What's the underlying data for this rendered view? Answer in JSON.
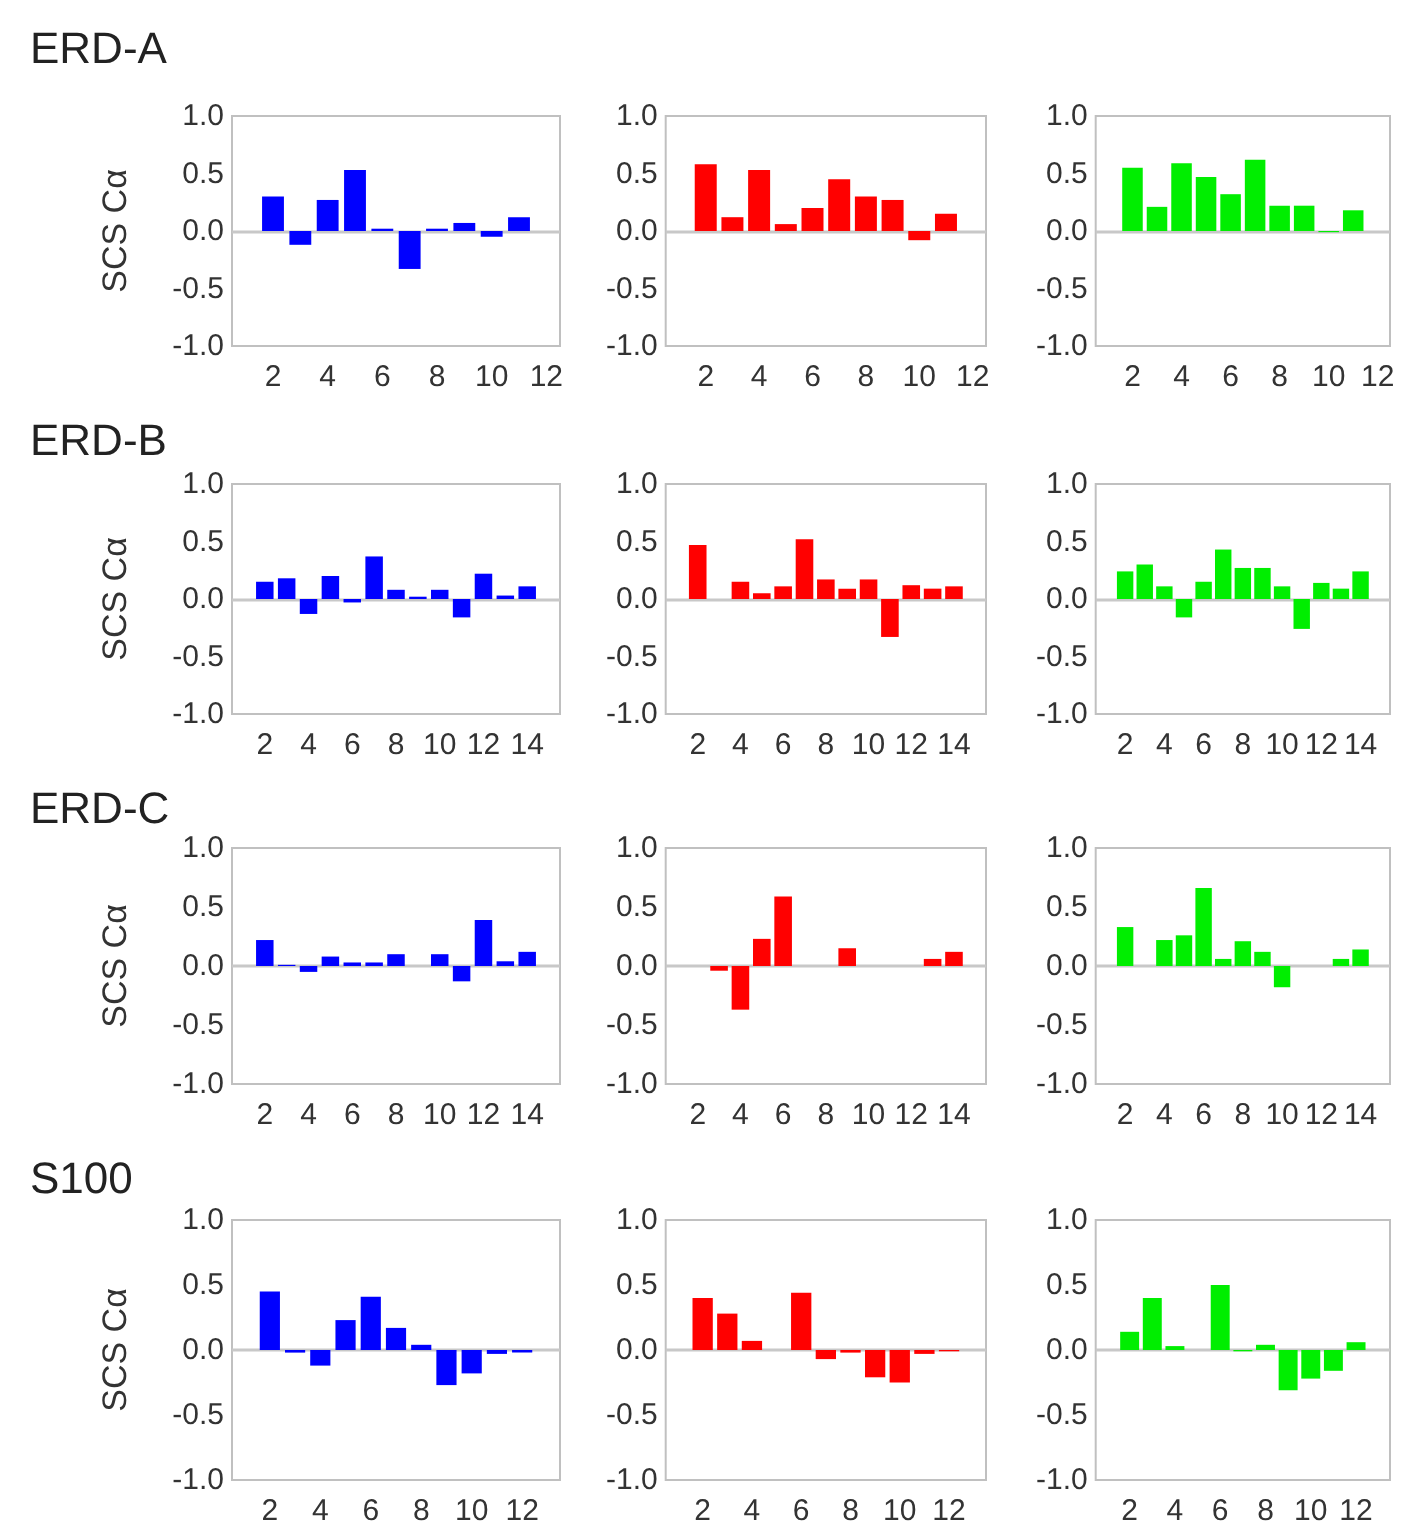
{
  "chart_data": [
    {
      "type": "bar",
      "title": "ERD-A",
      "ylabel": "SCS Cα",
      "x": [
        2,
        3,
        4,
        5,
        6,
        7,
        8,
        9,
        10,
        11
      ],
      "values": [
        0.3,
        -0.12,
        0.27,
        0.53,
        0.02,
        -0.33,
        0.02,
        0.07,
        -0.05,
        0.12
      ],
      "color": "#0000ff",
      "xlim": [
        0.5,
        12.5
      ],
      "xticks": [
        2,
        4,
        6,
        8,
        10,
        12
      ],
      "ylim": [
        -1,
        1
      ],
      "yticks": [
        {
          "value": -1,
          "label": "-1.0"
        },
        {
          "value": -0.5,
          "label": "-0.5"
        },
        {
          "value": 0,
          "label": "0.0"
        },
        {
          "value": 0.5,
          "label": "0.5"
        },
        {
          "value": 1,
          "label": "1.0"
        }
      ],
      "ref_lines": [
        {
          "axis": "y",
          "value": 0,
          "color": "#c8c8c8"
        }
      ]
    },
    {
      "type": "bar",
      "x": [
        2,
        3,
        4,
        5,
        6,
        7,
        8,
        9,
        10,
        11
      ],
      "values": [
        0.58,
        0.12,
        0.53,
        0.06,
        0.2,
        0.45,
        0.3,
        0.27,
        -0.08,
        0.15
      ],
      "color": "#ff0000",
      "xlim": [
        0.5,
        12.5
      ],
      "xticks": [
        2,
        4,
        6,
        8,
        10,
        12
      ],
      "ylim": [
        -1,
        1
      ],
      "yticks": [
        {
          "value": -1,
          "label": "-1.0"
        },
        {
          "value": -0.5,
          "label": "-0.5"
        },
        {
          "value": 0,
          "label": "0.0"
        },
        {
          "value": 0.5,
          "label": "0.5"
        },
        {
          "value": 1,
          "label": "1.0"
        }
      ],
      "ref_lines": [
        {
          "axis": "y",
          "value": 0,
          "color": "#c8c8c8"
        }
      ]
    },
    {
      "type": "bar",
      "x": [
        2,
        3,
        4,
        5,
        6,
        7,
        8,
        9,
        10,
        11
      ],
      "values": [
        0.55,
        0.21,
        0.59,
        0.47,
        0.32,
        0.62,
        0.22,
        0.22,
        -0.01,
        0.18
      ],
      "color": "#00ee00",
      "xlim": [
        0.5,
        12.5
      ],
      "xticks": [
        2,
        4,
        6,
        8,
        10,
        12
      ],
      "ylim": [
        -1,
        1
      ],
      "yticks": [
        {
          "value": -1,
          "label": "-1.0"
        },
        {
          "value": -0.5,
          "label": "-0.5"
        },
        {
          "value": 0,
          "label": "0.0"
        },
        {
          "value": 0.5,
          "label": "0.5"
        },
        {
          "value": 1,
          "label": "1.0"
        }
      ],
      "ref_lines": [
        {
          "axis": "y",
          "value": 0,
          "color": "#c8c8c8"
        }
      ]
    },
    {
      "type": "bar",
      "title": "ERD-B",
      "ylabel": "SCS Cα",
      "x": [
        2,
        3,
        4,
        5,
        6,
        7,
        8,
        9,
        10,
        11,
        12,
        13,
        14
      ],
      "values": [
        0.15,
        0.18,
        -0.13,
        0.2,
        -0.03,
        0.37,
        0.08,
        0.02,
        0.08,
        -0.16,
        0.22,
        0.03,
        0.11
      ],
      "color": "#0000ff",
      "xlim": [
        0.5,
        15.5
      ],
      "xticks": [
        2,
        4,
        6,
        8,
        10,
        12,
        14
      ],
      "ylim": [
        -1,
        1
      ],
      "yticks": [
        {
          "value": -1,
          "label": "-1.0"
        },
        {
          "value": -0.5,
          "label": "-0.5"
        },
        {
          "value": 0,
          "label": "0.0"
        },
        {
          "value": 0.5,
          "label": "0.5"
        },
        {
          "value": 1,
          "label": "1.0"
        }
      ],
      "ref_lines": [
        {
          "axis": "y",
          "value": 0,
          "color": "#c8c8c8"
        }
      ]
    },
    {
      "type": "bar",
      "x": [
        2,
        3,
        4,
        5,
        6,
        7,
        8,
        9,
        10,
        11,
        12,
        13,
        14
      ],
      "values": [
        0.47,
        null,
        0.15,
        0.05,
        0.11,
        0.52,
        0.17,
        0.09,
        0.17,
        -0.33,
        0.12,
        0.09,
        0.11
      ],
      "color": "#ff0000",
      "xlim": [
        0.5,
        15.5
      ],
      "xticks": [
        2,
        4,
        6,
        8,
        10,
        12,
        14
      ],
      "ylim": [
        -1,
        1
      ],
      "yticks": [
        {
          "value": -1,
          "label": "-1.0"
        },
        {
          "value": -0.5,
          "label": "-0.5"
        },
        {
          "value": 0,
          "label": "0.0"
        },
        {
          "value": 0.5,
          "label": "0.5"
        },
        {
          "value": 1,
          "label": "1.0"
        }
      ],
      "ref_lines": [
        {
          "axis": "y",
          "value": 0,
          "color": "#c8c8c8"
        }
      ]
    },
    {
      "type": "bar",
      "x": [
        2,
        3,
        4,
        5,
        6,
        7,
        8,
        9,
        10,
        11,
        12,
        13,
        14
      ],
      "values": [
        0.24,
        0.3,
        0.11,
        -0.16,
        0.15,
        0.43,
        0.27,
        0.27,
        0.11,
        -0.26,
        0.14,
        0.09,
        0.24
      ],
      "color": "#00ee00",
      "xlim": [
        0.5,
        15.5
      ],
      "xticks": [
        2,
        4,
        6,
        8,
        10,
        12,
        14
      ],
      "ylim": [
        -1,
        1
      ],
      "yticks": [
        {
          "value": -1,
          "label": "-1.0"
        },
        {
          "value": -0.5,
          "label": "-0.5"
        },
        {
          "value": 0,
          "label": "0.0"
        },
        {
          "value": 0.5,
          "label": "0.5"
        },
        {
          "value": 1,
          "label": "1.0"
        }
      ],
      "ref_lines": [
        {
          "axis": "y",
          "value": 0,
          "color": "#c8c8c8"
        }
      ]
    },
    {
      "type": "bar",
      "title": "ERD-C",
      "ylabel": "SCS Cα",
      "x": [
        2,
        3,
        4,
        5,
        6,
        7,
        8,
        9,
        10,
        11,
        12,
        13,
        14
      ],
      "values": [
        0.22,
        0.01,
        -0.05,
        0.08,
        0.03,
        0.03,
        0.1,
        null,
        0.1,
        -0.13,
        0.39,
        0.04,
        0.12
      ],
      "color": "#0000ff",
      "xlim": [
        0.5,
        15.5
      ],
      "xticks": [
        2,
        4,
        6,
        8,
        10,
        12,
        14
      ],
      "ylim": [
        -1,
        1
      ],
      "yticks": [
        {
          "value": -1,
          "label": "-1.0"
        },
        {
          "value": -0.5,
          "label": "-0.5"
        },
        {
          "value": 0,
          "label": "0.0"
        },
        {
          "value": 0.5,
          "label": "0.5"
        },
        {
          "value": 1,
          "label": "1.0"
        }
      ],
      "ref_lines": [
        {
          "axis": "y",
          "value": 0,
          "color": "#c8c8c8"
        }
      ]
    },
    {
      "type": "bar",
      "x": [
        3,
        4,
        5,
        6,
        7,
        8,
        9,
        10,
        11,
        12,
        13,
        14
      ],
      "values": [
        -0.04,
        -0.37,
        0.23,
        0.59,
        null,
        null,
        0.15,
        null,
        null,
        null,
        0.06,
        0.12
      ],
      "color": "#ff0000",
      "xlim": [
        0.5,
        15.5
      ],
      "xticks": [
        2,
        4,
        6,
        8,
        10,
        12,
        14
      ],
      "ylim": [
        -1,
        1
      ],
      "yticks": [
        {
          "value": -1,
          "label": "-1.0"
        },
        {
          "value": -0.5,
          "label": "-0.5"
        },
        {
          "value": 0,
          "label": "0.0"
        },
        {
          "value": 0.5,
          "label": "0.5"
        },
        {
          "value": 1,
          "label": "1.0"
        }
      ],
      "ref_lines": [
        {
          "axis": "y",
          "value": 0,
          "color": "#c8c8c8"
        }
      ]
    },
    {
      "type": "bar",
      "x": [
        2,
        3,
        4,
        5,
        6,
        7,
        8,
        9,
        10,
        11,
        12,
        13,
        14
      ],
      "values": [
        0.33,
        null,
        0.22,
        0.26,
        0.66,
        0.06,
        0.21,
        0.12,
        -0.18,
        null,
        null,
        0.06,
        0.14
      ],
      "color": "#00ee00",
      "xlim": [
        0.5,
        15.5
      ],
      "xticks": [
        2,
        4,
        6,
        8,
        10,
        12,
        14
      ],
      "ylim": [
        -1,
        1
      ],
      "yticks": [
        {
          "value": -1,
          "label": "-1.0"
        },
        {
          "value": -0.5,
          "label": "-0.5"
        },
        {
          "value": 0,
          "label": "0.0"
        },
        {
          "value": 0.5,
          "label": "0.5"
        },
        {
          "value": 1,
          "label": "1.0"
        }
      ],
      "ref_lines": [
        {
          "axis": "y",
          "value": 0,
          "color": "#c8c8c8"
        }
      ]
    },
    {
      "type": "bar",
      "title": "S100",
      "ylabel": "SCS Cα",
      "x": [
        2,
        3,
        4,
        5,
        6,
        7,
        8,
        9,
        10,
        11,
        12
      ],
      "values": [
        0.45,
        -0.02,
        -0.12,
        0.23,
        0.41,
        0.17,
        0.04,
        -0.27,
        -0.18,
        -0.03,
        -0.02
      ],
      "color": "#0000ff",
      "xlim": [
        0.5,
        13.5
      ],
      "xticks": [
        2,
        4,
        6,
        8,
        10,
        12
      ],
      "ylim": [
        -1,
        1
      ],
      "yticks": [
        {
          "value": -1,
          "label": "-1.0"
        },
        {
          "value": -0.5,
          "label": "-0.5"
        },
        {
          "value": 0,
          "label": "0.0"
        },
        {
          "value": 0.5,
          "label": "0.5"
        },
        {
          "value": 1,
          "label": "1.0"
        }
      ],
      "ref_lines": [
        {
          "axis": "y",
          "value": 0,
          "color": "#c8c8c8"
        }
      ]
    },
    {
      "type": "bar",
      "x": [
        2,
        3,
        4,
        5,
        6,
        7,
        8,
        9,
        10,
        11,
        12
      ],
      "values": [
        0.4,
        0.28,
        0.07,
        null,
        0.44,
        -0.07,
        -0.02,
        -0.21,
        -0.25,
        -0.03,
        -0.01
      ],
      "color": "#ff0000",
      "xlim": [
        0.5,
        13.5
      ],
      "xticks": [
        2,
        4,
        6,
        8,
        10,
        12
      ],
      "ylim": [
        -1,
        1
      ],
      "yticks": [
        {
          "value": -1,
          "label": "-1.0"
        },
        {
          "value": -0.5,
          "label": "-0.5"
        },
        {
          "value": 0,
          "label": "0.0"
        },
        {
          "value": 0.5,
          "label": "0.5"
        },
        {
          "value": 1,
          "label": "1.0"
        }
      ],
      "ref_lines": [
        {
          "axis": "y",
          "value": 0,
          "color": "#c8c8c8"
        }
      ]
    },
    {
      "type": "bar",
      "x": [
        2,
        3,
        4,
        5,
        6,
        7,
        8,
        9,
        10,
        11,
        12
      ],
      "values": [
        0.14,
        0.4,
        0.03,
        null,
        0.5,
        -0.01,
        0.04,
        -0.31,
        -0.22,
        -0.16,
        0.06
      ],
      "color": "#00ee00",
      "xlim": [
        0.5,
        13.5
      ],
      "xticks": [
        2,
        4,
        6,
        8,
        10,
        12
      ],
      "ylim": [
        -1,
        1
      ],
      "yticks": [
        {
          "value": -1,
          "label": "-1.0"
        },
        {
          "value": -0.5,
          "label": "-0.5"
        },
        {
          "value": 0,
          "label": "0.0"
        },
        {
          "value": 0.5,
          "label": "0.5"
        },
        {
          "value": 1,
          "label": "1.0"
        }
      ],
      "ref_lines": [
        {
          "axis": "y",
          "value": 0,
          "color": "#c8c8c8"
        }
      ]
    }
  ]
}
